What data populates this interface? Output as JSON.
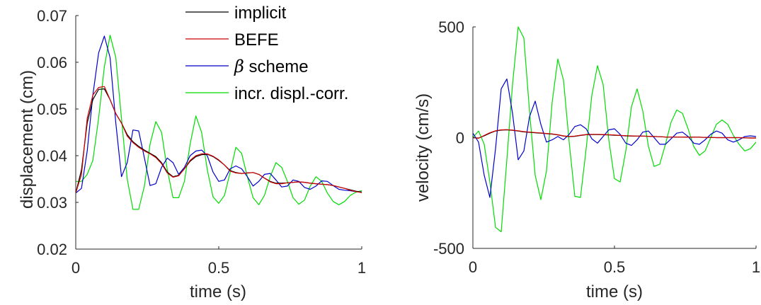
{
  "colors": {
    "implicit": "#000000",
    "befe": "#cc0000",
    "beta": "#0000cc",
    "incr": "#00dd00",
    "axis": "#262626"
  },
  "legend": {
    "placement": "top-right of left panel",
    "items": [
      {
        "label": "implicit",
        "color_key": "implicit"
      },
      {
        "label": "BEFE",
        "color_key": "befe"
      },
      {
        "symbol": "β",
        "label": " scheme",
        "color_key": "beta"
      },
      {
        "label": "incr. displ.-corr.",
        "color_key": "incr"
      }
    ]
  },
  "chart_data": [
    {
      "type": "line",
      "title": "",
      "xlabel": "time (s)",
      "ylabel": "displacement (cm)",
      "xlim": [
        0,
        1
      ],
      "ylim": [
        0.02,
        0.07
      ],
      "xticks": [
        0,
        0.5,
        1
      ],
      "xtick_labels": [
        "0",
        "0.5",
        "1"
      ],
      "yticks": [
        0.02,
        0.03,
        0.04,
        0.05,
        0.06,
        0.07
      ],
      "ytick_labels": [
        "0.02",
        "0.03",
        "0.04",
        "0.05",
        "0.06",
        "0.07"
      ],
      "grid": false,
      "series": [
        {
          "name": "implicit",
          "color_key": "implicit",
          "x": [
            0,
            0.02,
            0.04,
            0.06,
            0.08,
            0.1,
            0.12,
            0.14,
            0.16,
            0.18,
            0.2,
            0.22,
            0.24,
            0.26,
            0.28,
            0.3,
            0.32,
            0.34,
            0.36,
            0.38,
            0.4,
            0.42,
            0.44,
            0.46,
            0.48,
            0.5,
            0.52,
            0.54,
            0.56,
            0.58,
            0.6,
            0.62,
            0.64,
            0.66,
            0.68,
            0.7,
            0.72,
            0.74,
            0.76,
            0.78,
            0.8,
            0.82,
            0.84,
            0.86,
            0.88,
            0.9,
            0.92,
            0.94,
            0.96,
            0.98,
            1.0
          ],
          "y": [
            0.032,
            0.037,
            0.047,
            0.052,
            0.0542,
            0.0543,
            0.052,
            0.049,
            0.047,
            0.0445,
            0.043,
            0.042,
            0.0412,
            0.0405,
            0.0398,
            0.0385,
            0.0365,
            0.0355,
            0.0358,
            0.0372,
            0.0388,
            0.0398,
            0.0402,
            0.0403,
            0.0398,
            0.039,
            0.038,
            0.0368,
            0.0364,
            0.0362,
            0.0363,
            0.0364,
            0.036,
            0.0352,
            0.0345,
            0.0341,
            0.0341,
            0.0342,
            0.0343,
            0.0344,
            0.0343,
            0.0341,
            0.034,
            0.0339,
            0.0338,
            0.0336,
            0.0333,
            0.033,
            0.0327,
            0.0324,
            0.0322
          ]
        },
        {
          "name": "BEFE",
          "color_key": "befe",
          "x": [
            0,
            0.02,
            0.04,
            0.06,
            0.08,
            0.1,
            0.12,
            0.14,
            0.16,
            0.18,
            0.2,
            0.22,
            0.24,
            0.26,
            0.28,
            0.3,
            0.32,
            0.34,
            0.36,
            0.38,
            0.4,
            0.42,
            0.44,
            0.46,
            0.48,
            0.5,
            0.52,
            0.54,
            0.56,
            0.58,
            0.6,
            0.62,
            0.64,
            0.66,
            0.68,
            0.7,
            0.72,
            0.74,
            0.76,
            0.78,
            0.8,
            0.82,
            0.84,
            0.86,
            0.88,
            0.9,
            0.92,
            0.94,
            0.96,
            0.98,
            1.0
          ],
          "y": [
            0.032,
            0.036,
            0.048,
            0.053,
            0.0546,
            0.0548,
            0.052,
            0.049,
            0.047,
            0.0442,
            0.0428,
            0.0418,
            0.041,
            0.0404,
            0.0396,
            0.0383,
            0.0363,
            0.0354,
            0.0357,
            0.0372,
            0.039,
            0.04,
            0.0404,
            0.0404,
            0.0399,
            0.0391,
            0.038,
            0.0367,
            0.0363,
            0.0362,
            0.0363,
            0.0364,
            0.036,
            0.0352,
            0.0344,
            0.034,
            0.034,
            0.0342,
            0.0343,
            0.0344,
            0.0343,
            0.0341,
            0.034,
            0.0339,
            0.0338,
            0.0336,
            0.0333,
            0.033,
            0.0326,
            0.0323,
            0.0321
          ]
        },
        {
          "name": "β scheme",
          "color_key": "beta",
          "x": [
            0,
            0.02,
            0.04,
            0.06,
            0.08,
            0.1,
            0.12,
            0.14,
            0.16,
            0.18,
            0.2,
            0.22,
            0.24,
            0.26,
            0.28,
            0.3,
            0.32,
            0.34,
            0.36,
            0.38,
            0.4,
            0.42,
            0.44,
            0.46,
            0.48,
            0.5,
            0.52,
            0.54,
            0.56,
            0.58,
            0.6,
            0.62,
            0.64,
            0.66,
            0.68,
            0.7,
            0.72,
            0.74,
            0.76,
            0.78,
            0.8,
            0.82,
            0.84,
            0.86,
            0.88,
            0.9,
            0.92,
            0.94,
            0.96,
            0.98,
            1.0
          ],
          "y": [
            0.032,
            0.033,
            0.041,
            0.053,
            0.062,
            0.0656,
            0.061,
            0.047,
            0.0355,
            0.0385,
            0.0455,
            0.0453,
            0.0395,
            0.0336,
            0.034,
            0.0375,
            0.0395,
            0.0385,
            0.036,
            0.0375,
            0.04,
            0.041,
            0.0412,
            0.04,
            0.0365,
            0.0345,
            0.0348,
            0.0372,
            0.0378,
            0.0372,
            0.0355,
            0.0335,
            0.0345,
            0.036,
            0.0362,
            0.0348,
            0.0333,
            0.0335,
            0.0348,
            0.0345,
            0.0332,
            0.0328,
            0.0335,
            0.0346,
            0.0345,
            0.0336,
            0.0328,
            0.0326,
            0.0325,
            0.0323,
            0.0322
          ]
        },
        {
          "name": "incr. displ.-corr.",
          "color_key": "incr",
          "x": [
            0,
            0.02,
            0.04,
            0.06,
            0.08,
            0.1,
            0.12,
            0.14,
            0.16,
            0.18,
            0.2,
            0.22,
            0.24,
            0.26,
            0.28,
            0.3,
            0.32,
            0.34,
            0.36,
            0.38,
            0.4,
            0.42,
            0.44,
            0.46,
            0.48,
            0.5,
            0.52,
            0.54,
            0.56,
            0.58,
            0.6,
            0.62,
            0.64,
            0.66,
            0.68,
            0.7,
            0.72,
            0.74,
            0.76,
            0.78,
            0.8,
            0.82,
            0.84,
            0.86,
            0.88,
            0.9,
            0.92,
            0.94,
            0.96,
            0.98,
            1.0
          ],
          "y": [
            0.0345,
            0.0345,
            0.036,
            0.039,
            0.048,
            0.059,
            0.0658,
            0.061,
            0.048,
            0.035,
            0.0285,
            0.0285,
            0.0335,
            0.0425,
            0.0473,
            0.045,
            0.037,
            0.031,
            0.031,
            0.0345,
            0.0425,
            0.0485,
            0.045,
            0.037,
            0.0312,
            0.0298,
            0.0315,
            0.0365,
            0.0418,
            0.0405,
            0.0355,
            0.031,
            0.0295,
            0.0315,
            0.0355,
            0.0385,
            0.0375,
            0.0345,
            0.031,
            0.0296,
            0.0305,
            0.0335,
            0.0355,
            0.0345,
            0.032,
            0.0302,
            0.0295,
            0.0302,
            0.0315,
            0.0322,
            0.0325
          ]
        }
      ]
    },
    {
      "type": "line",
      "title": "",
      "xlabel": "time (s)",
      "ylabel": "velocity (cm/s)",
      "xlim": [
        0,
        1
      ],
      "ylim": [
        -500,
        500
      ],
      "xticks": [
        0,
        0.5,
        1
      ],
      "xtick_labels": [
        "0",
        "0.5",
        "1"
      ],
      "yticks": [
        -500,
        0,
        500
      ],
      "ytick_labels": [
        "-500",
        "0",
        "500"
      ],
      "grid": false,
      "series": [
        {
          "name": "implicit",
          "color_key": "implicit",
          "x": [
            0,
            0.02,
            0.04,
            0.06,
            0.08,
            0.1,
            0.12,
            0.14,
            0.16,
            0.18,
            0.2,
            0.22,
            0.24,
            0.26,
            0.28,
            0.3,
            0.32,
            0.34,
            0.36,
            0.38,
            0.4,
            0.42,
            0.44,
            0.46,
            0.48,
            0.5,
            0.52,
            0.54,
            0.56,
            0.58,
            0.6,
            0.62,
            0.64,
            0.66,
            0.68,
            0.7,
            0.72,
            0.74,
            0.76,
            0.78,
            0.8,
            0.82,
            0.84,
            0.86,
            0.88,
            0.9,
            0.92,
            0.94,
            0.96,
            0.98,
            1.0
          ],
          "y": [
            0,
            -2,
            8,
            20,
            30,
            34,
            35,
            33,
            30,
            26,
            24,
            22,
            20,
            18,
            16,
            12,
            7,
            4,
            6,
            10,
            13,
            14,
            14,
            13,
            12,
            11,
            10,
            8,
            7,
            7,
            7,
            6,
            5,
            4,
            3,
            3,
            3,
            3,
            2,
            2,
            2,
            1,
            1,
            0,
            0,
            0,
            0,
            0,
            -1,
            -1,
            -1
          ]
        },
        {
          "name": "BEFE",
          "color_key": "befe",
          "x": [
            0,
            0.02,
            0.04,
            0.06,
            0.08,
            0.1,
            0.12,
            0.14,
            0.16,
            0.18,
            0.2,
            0.22,
            0.24,
            0.26,
            0.28,
            0.3,
            0.32,
            0.34,
            0.36,
            0.38,
            0.4,
            0.42,
            0.44,
            0.46,
            0.48,
            0.5,
            0.52,
            0.54,
            0.56,
            0.58,
            0.6,
            0.62,
            0.64,
            0.66,
            0.68,
            0.7,
            0.72,
            0.74,
            0.76,
            0.78,
            0.8,
            0.82,
            0.84,
            0.86,
            0.88,
            0.9,
            0.92,
            0.94,
            0.96,
            0.98,
            1.0
          ],
          "y": [
            0,
            -3,
            10,
            22,
            31,
            35,
            36,
            34,
            31,
            27,
            25,
            23,
            21,
            19,
            17,
            13,
            8,
            5,
            7,
            11,
            14,
            15,
            15,
            14,
            13,
            12,
            10,
            9,
            8,
            7,
            7,
            6,
            5,
            4,
            3,
            3,
            3,
            3,
            2,
            2,
            2,
            1,
            1,
            0,
            0,
            0,
            0,
            0,
            -1,
            -2,
            -2
          ]
        },
        {
          "name": "β scheme",
          "color_key": "beta",
          "x": [
            0,
            0.02,
            0.04,
            0.06,
            0.08,
            0.1,
            0.12,
            0.14,
            0.16,
            0.18,
            0.2,
            0.22,
            0.24,
            0.26,
            0.28,
            0.3,
            0.32,
            0.34,
            0.36,
            0.38,
            0.4,
            0.42,
            0.44,
            0.46,
            0.48,
            0.5,
            0.52,
            0.54,
            0.56,
            0.58,
            0.6,
            0.62,
            0.64,
            0.66,
            0.68,
            0.7,
            0.72,
            0.74,
            0.76,
            0.78,
            0.8,
            0.82,
            0.84,
            0.86,
            0.88,
            0.9,
            0.92,
            0.94,
            0.96,
            0.98,
            1.0
          ],
          "y": [
            20,
            -20,
            -170,
            -270,
            -50,
            220,
            265,
            110,
            -100,
            -60,
            95,
            165,
            60,
            -20,
            -10,
            5,
            -10,
            15,
            50,
            58,
            40,
            -5,
            -25,
            5,
            35,
            40,
            15,
            -25,
            -35,
            -10,
            25,
            30,
            0,
            -30,
            -30,
            -5,
            20,
            25,
            5,
            -25,
            -30,
            -10,
            15,
            30,
            20,
            -10,
            -20,
            -10,
            5,
            8,
            5
          ]
        },
        {
          "name": "incr. displ.-corr.",
          "color_key": "incr",
          "x": [
            0,
            0.02,
            0.04,
            0.06,
            0.08,
            0.1,
            0.12,
            0.14,
            0.16,
            0.18,
            0.2,
            0.22,
            0.24,
            0.26,
            0.28,
            0.3,
            0.32,
            0.34,
            0.36,
            0.38,
            0.4,
            0.42,
            0.44,
            0.46,
            0.48,
            0.5,
            0.52,
            0.54,
            0.56,
            0.58,
            0.6,
            0.62,
            0.64,
            0.66,
            0.68,
            0.7,
            0.72,
            0.74,
            0.76,
            0.78,
            0.8,
            0.82,
            0.84,
            0.86,
            0.88,
            0.9,
            0.92,
            0.94,
            0.96,
            0.98,
            1.0
          ],
          "y": [
            0,
            30,
            -30,
            -200,
            -405,
            -425,
            -100,
            240,
            500,
            450,
            120,
            -170,
            -280,
            -150,
            160,
            355,
            260,
            -20,
            -265,
            -270,
            -50,
            190,
            325,
            240,
            -10,
            -185,
            -200,
            -60,
            140,
            220,
            120,
            -40,
            -130,
            -120,
            -30,
            70,
            125,
            110,
            40,
            -40,
            -80,
            -60,
            0,
            60,
            80,
            60,
            10,
            -30,
            -60,
            -50,
            -20
          ]
        }
      ]
    }
  ]
}
